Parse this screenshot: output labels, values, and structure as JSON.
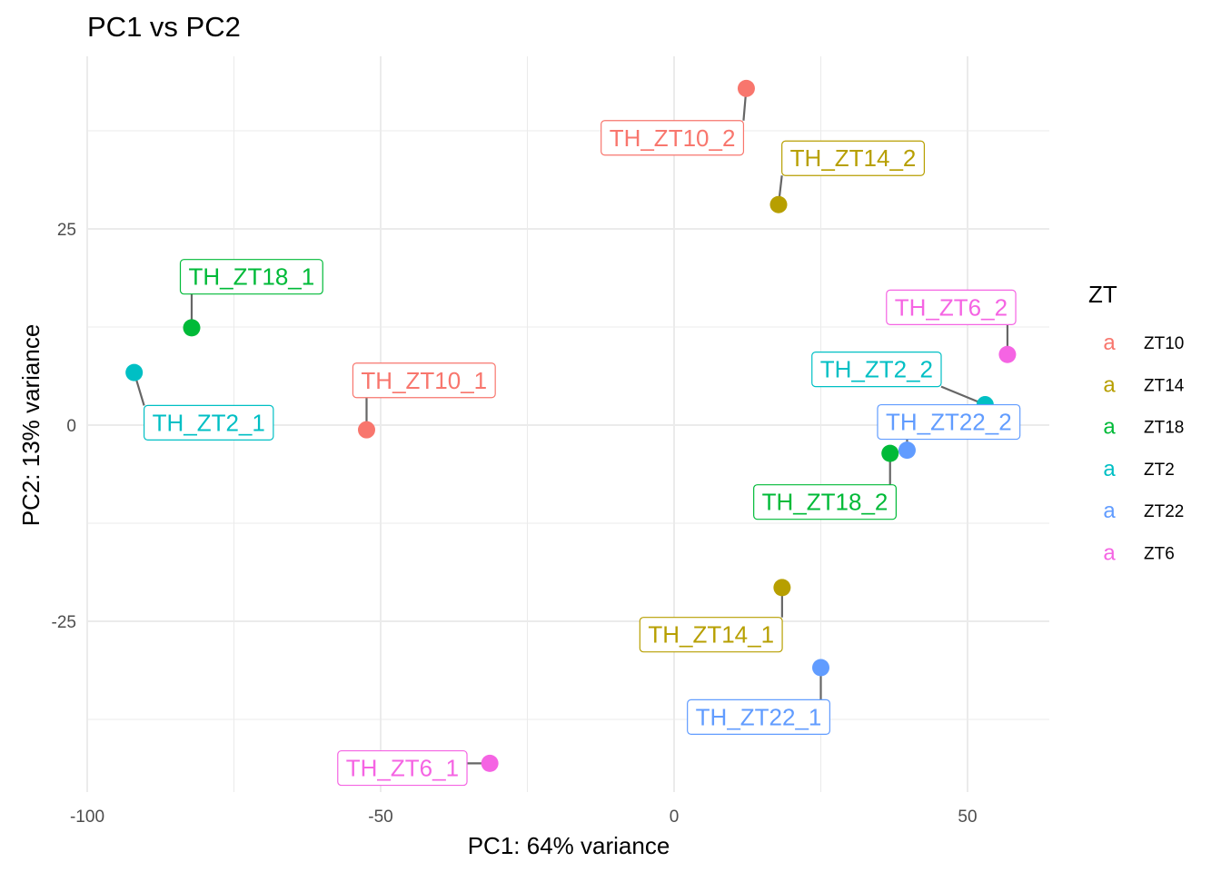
{
  "chart_data": {
    "type": "scatter",
    "title": "PC1 vs PC2",
    "xlabel": "PC1: 64% variance",
    "ylabel": "PC2: 13% variance",
    "xlim": [
      -100,
      64
    ],
    "ylim": [
      -47,
      50
    ],
    "xticks": [
      -100,
      -50,
      0,
      50
    ],
    "yticks": [
      -25,
      0,
      25
    ],
    "grid": true,
    "legend": {
      "title": "ZT",
      "position": "right",
      "key_glyph": "a",
      "entries": [
        {
          "name": "ZT10",
          "color": "#F8766D"
        },
        {
          "name": "ZT14",
          "color": "#B79F00"
        },
        {
          "name": "ZT18",
          "color": "#00BA38"
        },
        {
          "name": "ZT2",
          "color": "#00BFC4"
        },
        {
          "name": "ZT22",
          "color": "#619CFF"
        },
        {
          "name": "ZT6",
          "color": "#F564E3"
        }
      ]
    },
    "points": [
      {
        "label": "TH_ZT10_2",
        "group": "ZT10",
        "x": 12.3,
        "y": 42.9,
        "lx": -0.3,
        "ly": 36.6
      },
      {
        "label": "TH_ZT14_2",
        "group": "ZT14",
        "x": 17.8,
        "y": 28.1,
        "lx": 30.5,
        "ly": 34.0
      },
      {
        "label": "TH_ZT18_1",
        "group": "ZT18",
        "x": -82.2,
        "y": 12.4,
        "lx": -72.0,
        "ly": 18.9
      },
      {
        "label": "TH_ZT2_1",
        "group": "ZT2",
        "x": -92.0,
        "y": 6.7,
        "lx": -79.3,
        "ly": 0.3
      },
      {
        "label": "TH_ZT10_1",
        "group": "ZT10",
        "x": -52.4,
        "y": -0.6,
        "lx": -42.6,
        "ly": 5.7
      },
      {
        "label": "TH_ZT6_2",
        "group": "ZT6",
        "x": 56.8,
        "y": 9.0,
        "lx": 47.2,
        "ly": 15.0
      },
      {
        "label": "TH_ZT2_2",
        "group": "ZT2",
        "x": 53.0,
        "y": 2.6,
        "lx": 34.5,
        "ly": 7.1
      },
      {
        "label": "TH_ZT22_2",
        "group": "ZT22",
        "x": 39.7,
        "y": -3.2,
        "lx": 46.8,
        "ly": 0.4
      },
      {
        "label": "TH_ZT18_2",
        "group": "ZT18",
        "x": 36.8,
        "y": -3.6,
        "lx": 25.7,
        "ly": -9.8
      },
      {
        "label": "TH_ZT14_1",
        "group": "ZT14",
        "x": 18.4,
        "y": -20.7,
        "lx": 6.3,
        "ly": -26.7
      },
      {
        "label": "TH_ZT22_1",
        "group": "ZT22",
        "x": 25.0,
        "y": -30.9,
        "lx": 14.4,
        "ly": -37.2
      },
      {
        "label": "TH_ZT6_1",
        "group": "ZT6",
        "x": -31.4,
        "y": -43.1,
        "lx": -46.3,
        "ly": -43.7
      }
    ]
  }
}
